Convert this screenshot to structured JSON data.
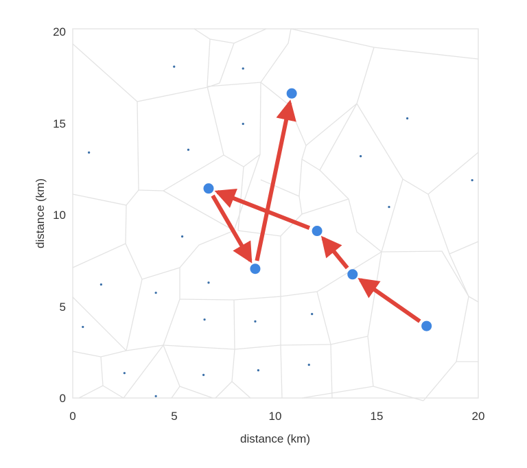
{
  "chart_data": {
    "type": "scatter",
    "title": "",
    "xlabel": "distance (km)",
    "ylabel": "distance (km)",
    "xlim": [
      0,
      20
    ],
    "ylim": [
      0,
      20
    ],
    "xticks": [
      0,
      5,
      10,
      15,
      20
    ],
    "yticks": [
      0,
      5,
      10,
      15,
      20
    ],
    "grid": false,
    "overlay": "Voronoi tessellation of seed points",
    "colors": {
      "points": "#3f86e0",
      "seeds": "#3a6fa8",
      "arrows": "#e0443a",
      "edges": "#e3e3e3"
    },
    "seed_points": [
      {
        "x": 5.0,
        "y": 17.95
      },
      {
        "x": 8.4,
        "y": 17.85
      },
      {
        "x": 0.8,
        "y": 13.3
      },
      {
        "x": 5.7,
        "y": 13.45
      },
      {
        "x": 8.4,
        "y": 14.85
      },
      {
        "x": 16.5,
        "y": 15.15
      },
      {
        "x": 14.2,
        "y": 13.1
      },
      {
        "x": 19.7,
        "y": 11.8
      },
      {
        "x": 15.6,
        "y": 10.35
      },
      {
        "x": 5.4,
        "y": 8.75
      },
      {
        "x": 1.4,
        "y": 6.15
      },
      {
        "x": 4.1,
        "y": 5.7
      },
      {
        "x": 6.7,
        "y": 6.25
      },
      {
        "x": 0.5,
        "y": 3.85
      },
      {
        "x": 6.5,
        "y": 4.25
      },
      {
        "x": 9.0,
        "y": 4.15
      },
      {
        "x": 11.8,
        "y": 4.55
      },
      {
        "x": 2.55,
        "y": 1.35
      },
      {
        "x": 6.45,
        "y": 1.25
      },
      {
        "x": 9.15,
        "y": 1.5
      },
      {
        "x": 11.65,
        "y": 1.8
      },
      {
        "x": 4.1,
        "y": 0.1
      }
    ],
    "path_points": [
      {
        "x": 17.45,
        "y": 3.9
      },
      {
        "x": 13.8,
        "y": 6.7
      },
      {
        "x": 12.05,
        "y": 9.05
      },
      {
        "x": 6.7,
        "y": 11.35
      },
      {
        "x": 9.0,
        "y": 7.0
      },
      {
        "x": 10.8,
        "y": 16.5
      }
    ],
    "path_order": "arrows connect path_points sequentially: 1→2→3→4→5→6"
  },
  "axes": {
    "x_label": "distance (km)",
    "y_label": "distance (km)",
    "x_ticks": [
      "0",
      "5",
      "10",
      "15",
      "20"
    ],
    "y_ticks": [
      "0",
      "5",
      "10",
      "15",
      "20"
    ]
  }
}
